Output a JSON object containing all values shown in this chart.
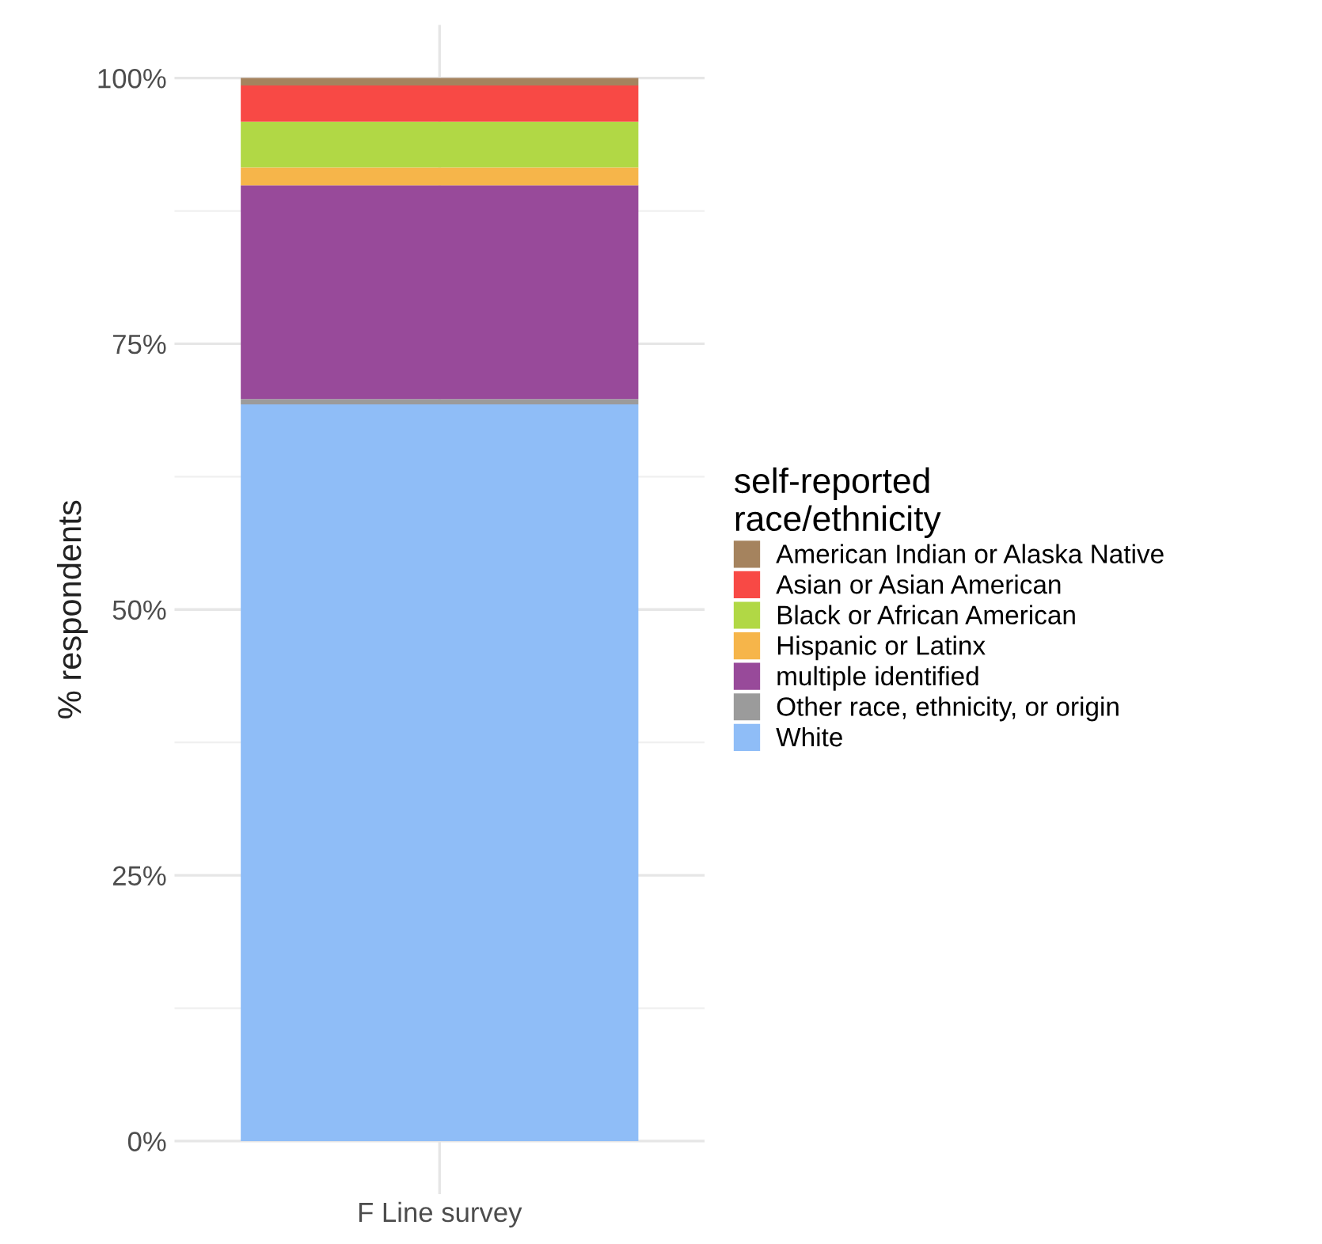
{
  "chart_data": {
    "type": "bar",
    "stacked": true,
    "categories": [
      "F Line survey"
    ],
    "ylabel": "% respondents",
    "legend_title": "self-reported\nrace/ethnicity",
    "legend": "right",
    "ylim": [
      -5,
      105
    ],
    "yticks": [
      {
        "value": 0,
        "label": "0%"
      },
      {
        "value": 25,
        "label": "25%"
      },
      {
        "value": 50,
        "label": "50%"
      },
      {
        "value": 75,
        "label": "75%"
      },
      {
        "value": 100,
        "label": "100%"
      }
    ],
    "grid": true,
    "series": [
      {
        "name": "White",
        "color": "#8fbdf7",
        "values": [
          69.3
        ]
      },
      {
        "name": "Other race, ethnicity, or origin",
        "color": "#9b9b9b",
        "values": [
          0.5
        ]
      },
      {
        "name": "multiple identified",
        "color": "#984a9a",
        "values": [
          20.1
        ]
      },
      {
        "name": "Hispanic or Latinx",
        "color": "#f6b54a",
        "values": [
          1.7
        ]
      },
      {
        "name": "Black or African American",
        "color": "#b1d845",
        "values": [
          4.3
        ]
      },
      {
        "name": "Asian or Asian American",
        "color": "#f84945",
        "values": [
          3.4
        ]
      },
      {
        "name": "American Indian or Alaska Native",
        "color": "#a5835e",
        "values": [
          0.7
        ]
      }
    ]
  }
}
